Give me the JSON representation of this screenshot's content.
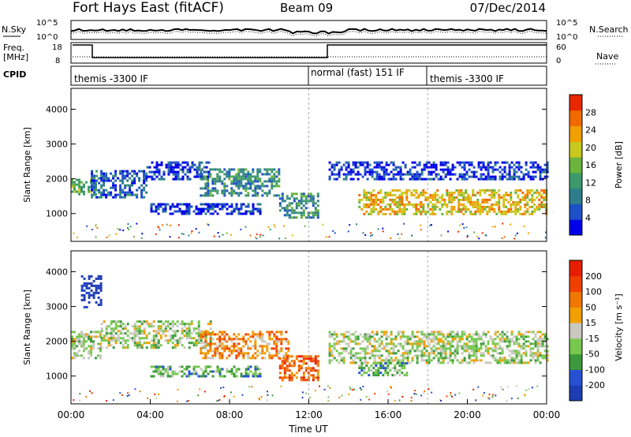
{
  "header": {
    "title": "Fort Hays East (fitACF)",
    "beam": "Beam 09",
    "date": "07/Dec/2014"
  },
  "top_panels": {
    "nsky_label": "N.Sky",
    "nsearch_label": "N.Search",
    "nsky_ticks": [
      "10^5",
      "10^0"
    ],
    "nsearch_ticks": [
      "10^5",
      "10^0"
    ],
    "freq_label_1": "Freq.",
    "freq_label_2": "[MHz]",
    "freq_ticks": [
      "18",
      "8"
    ],
    "nave_label": "Nave",
    "nave_ticks": [
      "60",
      "0"
    ],
    "cpid_label": "CPID",
    "modes": [
      {
        "label": "themis -3300 IF",
        "start_hour": 0
      },
      {
        "label": "normal (fast) 151 IF",
        "start_hour": 12
      },
      {
        "label": "themis -3300 IF",
        "start_hour": 18
      }
    ]
  },
  "power_colorbar": {
    "label": "Power [dB]",
    "ticks": [
      "28",
      "24",
      "20",
      "16",
      "12",
      "8",
      "4"
    ]
  },
  "velocity_colorbar": {
    "label": "Velocity [m s⁻¹]",
    "ticks": [
      "200",
      "100",
      "50",
      "15",
      "-15",
      "-50",
      "-100",
      "-200"
    ]
  },
  "colors": {
    "power": [
      "#0000e8",
      "#1e50c8",
      "#2e7d8c",
      "#3c9a6a",
      "#6ab43c",
      "#c8c81e",
      "#f0a000",
      "#f06a00",
      "#e82800"
    ],
    "velocity": [
      "#1e3cb4",
      "#2850d2",
      "#3c9a3c",
      "#78c850",
      "#c8c8c0",
      "#f0a000",
      "#f07800",
      "#f04000",
      "#e81e00"
    ]
  },
  "chart_data": [
    {
      "type": "heatmap",
      "name": "power",
      "xlabel": "",
      "ylabel": "Slant Range [km]",
      "xlim_hours": [
        0,
        24
      ],
      "ylim": [
        200,
        4600
      ],
      "yticks": [
        1000,
        2000,
        3000,
        4000
      ],
      "features": [
        {
          "t0": 0.0,
          "t1": 1.2,
          "r0": 1550,
          "r1": 2000,
          "level": 4
        },
        {
          "t0": 1.0,
          "t1": 3.8,
          "r0": 1500,
          "r1": 2250,
          "level": 2
        },
        {
          "t0": 3.8,
          "t1": 7.0,
          "r0": 2000,
          "r1": 2500,
          "level": 1
        },
        {
          "t0": 6.5,
          "t1": 10.5,
          "r0": 1500,
          "r1": 2300,
          "level": 3
        },
        {
          "t0": 4.0,
          "t1": 9.5,
          "r0": 1000,
          "r1": 1300,
          "level": 1
        },
        {
          "t0": 10.5,
          "t1": 12.5,
          "r0": 900,
          "r1": 1600,
          "level": 3
        },
        {
          "t0": 13.0,
          "t1": 24.0,
          "r0": 2000,
          "r1": 2500,
          "level": 1
        },
        {
          "t0": 14.5,
          "t1": 24.0,
          "r0": 1000,
          "r1": 1700,
          "level": 6
        }
      ]
    },
    {
      "type": "heatmap",
      "name": "velocity",
      "xlabel": "Time UT",
      "ylabel": "Slant Range [km]",
      "xlim_hours": [
        0,
        24
      ],
      "ylim": [
        200,
        4600
      ],
      "yticks": [
        1000,
        2000,
        3000,
        4000
      ],
      "xticks": [
        "00:00",
        "04:00",
        "08:00",
        "12:00",
        "16:00",
        "20:00",
        "00:00"
      ],
      "features": [
        {
          "t0": 0.0,
          "t1": 1.5,
          "r0": 1500,
          "r1": 2300,
          "level": 4
        },
        {
          "t0": 1.5,
          "t1": 7.0,
          "r0": 1800,
          "r1": 2600,
          "level": 4
        },
        {
          "t0": 6.5,
          "t1": 11.0,
          "r0": 1500,
          "r1": 2300,
          "level": 6
        },
        {
          "t0": 4.0,
          "t1": 9.5,
          "r0": 1000,
          "r1": 1300,
          "level": 3
        },
        {
          "t0": 10.5,
          "t1": 12.5,
          "r0": 900,
          "r1": 1600,
          "level": 7
        },
        {
          "t0": 13.0,
          "t1": 24.0,
          "r0": 1400,
          "r1": 2300,
          "level": 4
        },
        {
          "t0": 14.5,
          "t1": 17.0,
          "r0": 1000,
          "r1": 1400,
          "level": 3
        },
        {
          "t0": 0.5,
          "t1": 1.5,
          "r0": 3000,
          "r1": 3900,
          "level": 0
        }
      ]
    }
  ]
}
